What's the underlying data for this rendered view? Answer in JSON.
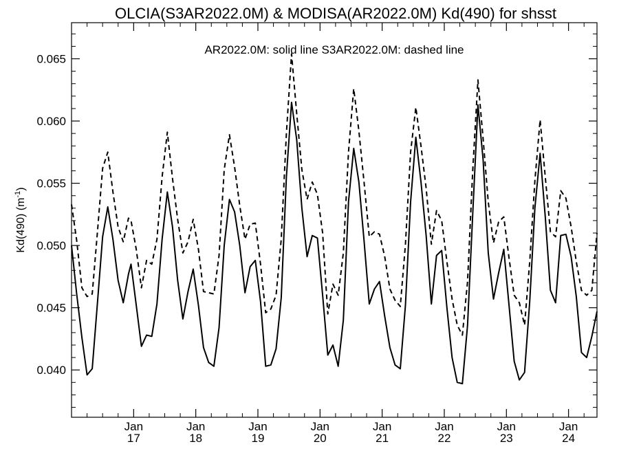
{
  "chart_data": {
    "type": "line",
    "title": "OLCIA(S3AR2022.0M) & MODISA(AR2022.0M)  Kd(490) for shsst",
    "annotation": "AR2022.0M: solid line   S3AR2022.0M: dashed line",
    "ylabel": "Kd(490) (m",
    "ylabel_sup": "-1",
    "ylabel_close": ")",
    "ylim": [
      0.0362,
      0.0679
    ],
    "xlim": [
      2016.0,
      2024.458
    ],
    "grid": false,
    "yticks": [
      {
        "value": 0.04,
        "label": "0.040"
      },
      {
        "value": 0.045,
        "label": "0.045"
      },
      {
        "value": 0.05,
        "label": "0.050"
      },
      {
        "value": 0.055,
        "label": "0.055"
      },
      {
        "value": 0.06,
        "label": "0.060"
      },
      {
        "value": 0.065,
        "label": "0.065"
      }
    ],
    "xticks": [
      {
        "value": 2017,
        "month": "Jan",
        "year": "17"
      },
      {
        "value": 2018,
        "month": "Jan",
        "year": "18"
      },
      {
        "value": 2019,
        "month": "Jan",
        "year": "19"
      },
      {
        "value": 2020,
        "month": "Jan",
        "year": "20"
      },
      {
        "value": 2021,
        "month": "Jan",
        "year": "21"
      },
      {
        "value": 2022,
        "month": "Jan",
        "year": "22"
      },
      {
        "value": 2023,
        "month": "Jan",
        "year": "23"
      },
      {
        "value": 2024,
        "month": "Jan",
        "year": "24"
      }
    ],
    "series": [
      {
        "name": "AR2022.0M",
        "style": "solid",
        "color": "#000000",
        "points": [
          [
            2016.0,
            0.05
          ],
          [
            2016.083,
            0.0461
          ],
          [
            2016.167,
            0.0426
          ],
          [
            2016.25,
            0.0396
          ],
          [
            2016.333,
            0.0401
          ],
          [
            2016.417,
            0.0454
          ],
          [
            2016.5,
            0.0507
          ],
          [
            2016.583,
            0.0531
          ],
          [
            2016.667,
            0.0505
          ],
          [
            2016.75,
            0.0472
          ],
          [
            2016.833,
            0.0454
          ],
          [
            2016.917,
            0.0477
          ],
          [
            2016.958,
            0.0485
          ],
          [
            2017.042,
            0.0452
          ],
          [
            2017.125,
            0.0419
          ],
          [
            2017.208,
            0.0428
          ],
          [
            2017.292,
            0.0427
          ],
          [
            2017.375,
            0.0453
          ],
          [
            2017.458,
            0.0505
          ],
          [
            2017.542,
            0.0543
          ],
          [
            2017.625,
            0.0515
          ],
          [
            2017.708,
            0.0472
          ],
          [
            2017.792,
            0.0441
          ],
          [
            2017.875,
            0.0463
          ],
          [
            2017.958,
            0.0481
          ],
          [
            2018.042,
            0.0452
          ],
          [
            2018.125,
            0.0418
          ],
          [
            2018.208,
            0.0406
          ],
          [
            2018.292,
            0.0403
          ],
          [
            2018.375,
            0.0434
          ],
          [
            2018.458,
            0.05
          ],
          [
            2018.542,
            0.0537
          ],
          [
            2018.625,
            0.0527
          ],
          [
            2018.708,
            0.05
          ],
          [
            2018.792,
            0.0462
          ],
          [
            2018.875,
            0.0483
          ],
          [
            2018.958,
            0.0488
          ],
          [
            2019.042,
            0.0455
          ],
          [
            2019.125,
            0.0403
          ],
          [
            2019.208,
            0.0404
          ],
          [
            2019.292,
            0.0417
          ],
          [
            2019.375,
            0.0458
          ],
          [
            2019.458,
            0.0555
          ],
          [
            2019.542,
            0.0615
          ],
          [
            2019.625,
            0.0585
          ],
          [
            2019.708,
            0.053
          ],
          [
            2019.792,
            0.0491
          ],
          [
            2019.875,
            0.0508
          ],
          [
            2019.958,
            0.0506
          ],
          [
            2020.042,
            0.046
          ],
          [
            2020.125,
            0.0412
          ],
          [
            2020.208,
            0.042
          ],
          [
            2020.292,
            0.0403
          ],
          [
            2020.375,
            0.044
          ],
          [
            2020.458,
            0.0535
          ],
          [
            2020.542,
            0.0578
          ],
          [
            2020.625,
            0.0551
          ],
          [
            2020.708,
            0.0504
          ],
          [
            2020.792,
            0.0453
          ],
          [
            2020.875,
            0.0465
          ],
          [
            2020.958,
            0.0471
          ],
          [
            2021.042,
            0.0443
          ],
          [
            2021.125,
            0.0418
          ],
          [
            2021.208,
            0.0404
          ],
          [
            2021.292,
            0.0401
          ],
          [
            2021.375,
            0.0452
          ],
          [
            2021.458,
            0.0535
          ],
          [
            2021.542,
            0.0587
          ],
          [
            2021.625,
            0.0551
          ],
          [
            2021.708,
            0.0508
          ],
          [
            2021.792,
            0.0453
          ],
          [
            2021.875,
            0.0492
          ],
          [
            2021.958,
            0.0496
          ],
          [
            2022.042,
            0.045
          ],
          [
            2022.125,
            0.041
          ],
          [
            2022.208,
            0.039
          ],
          [
            2022.292,
            0.0389
          ],
          [
            2022.375,
            0.0436
          ],
          [
            2022.458,
            0.0525
          ],
          [
            2022.542,
            0.0613
          ],
          [
            2022.625,
            0.0569
          ],
          [
            2022.708,
            0.0494
          ],
          [
            2022.792,
            0.0457
          ],
          [
            2022.875,
            0.0478
          ],
          [
            2022.958,
            0.0497
          ],
          [
            2023.042,
            0.0452
          ],
          [
            2023.125,
            0.0407
          ],
          [
            2023.208,
            0.0392
          ],
          [
            2023.292,
            0.0398
          ],
          [
            2023.375,
            0.0455
          ],
          [
            2023.458,
            0.053
          ],
          [
            2023.542,
            0.0574
          ],
          [
            2023.625,
            0.0523
          ],
          [
            2023.708,
            0.0464
          ],
          [
            2023.792,
            0.0454
          ],
          [
            2023.875,
            0.0508
          ],
          [
            2023.958,
            0.0509
          ],
          [
            2024.042,
            0.0491
          ],
          [
            2024.125,
            0.0459
          ],
          [
            2024.208,
            0.0414
          ],
          [
            2024.292,
            0.041
          ],
          [
            2024.375,
            0.0427
          ],
          [
            2024.458,
            0.0447
          ]
        ]
      },
      {
        "name": "S3AR2022.0M",
        "style": "dashed",
        "color": "#000000",
        "points": [
          [
            2016.0,
            0.0533
          ],
          [
            2016.083,
            0.0504
          ],
          [
            2016.167,
            0.0466
          ],
          [
            2016.25,
            0.0459
          ],
          [
            2016.333,
            0.0461
          ],
          [
            2016.417,
            0.0511
          ],
          [
            2016.5,
            0.0562
          ],
          [
            2016.583,
            0.0575
          ],
          [
            2016.667,
            0.0543
          ],
          [
            2016.75,
            0.0515
          ],
          [
            2016.833,
            0.0503
          ],
          [
            2016.917,
            0.0522
          ],
          [
            2016.958,
            0.052
          ],
          [
            2017.042,
            0.0497
          ],
          [
            2017.125,
            0.0466
          ],
          [
            2017.208,
            0.0488
          ],
          [
            2017.292,
            0.0485
          ],
          [
            2017.375,
            0.0505
          ],
          [
            2017.458,
            0.0555
          ],
          [
            2017.542,
            0.0591
          ],
          [
            2017.625,
            0.0554
          ],
          [
            2017.708,
            0.0521
          ],
          [
            2017.792,
            0.0494
          ],
          [
            2017.875,
            0.0503
          ],
          [
            2017.958,
            0.0521
          ],
          [
            2018.042,
            0.0497
          ],
          [
            2018.125,
            0.0463
          ],
          [
            2018.208,
            0.0462
          ],
          [
            2018.292,
            0.0461
          ],
          [
            2018.375,
            0.0492
          ],
          [
            2018.458,
            0.0561
          ],
          [
            2018.542,
            0.0589
          ],
          [
            2018.625,
            0.0563
          ],
          [
            2018.708,
            0.0532
          ],
          [
            2018.792,
            0.0505
          ],
          [
            2018.875,
            0.0517
          ],
          [
            2018.958,
            0.0518
          ],
          [
            2019.042,
            0.0485
          ],
          [
            2019.125,
            0.0446
          ],
          [
            2019.208,
            0.0449
          ],
          [
            2019.292,
            0.046
          ],
          [
            2019.375,
            0.0505
          ],
          [
            2019.458,
            0.059
          ],
          [
            2019.542,
            0.0654
          ],
          [
            2019.625,
            0.0606
          ],
          [
            2019.708,
            0.0561
          ],
          [
            2019.792,
            0.0537
          ],
          [
            2019.875,
            0.0551
          ],
          [
            2019.958,
            0.0541
          ],
          [
            2020.042,
            0.051
          ],
          [
            2020.125,
            0.0445
          ],
          [
            2020.208,
            0.0469
          ],
          [
            2020.292,
            0.046
          ],
          [
            2020.375,
            0.0494
          ],
          [
            2020.458,
            0.0575
          ],
          [
            2020.542,
            0.0626
          ],
          [
            2020.625,
            0.0592
          ],
          [
            2020.708,
            0.0551
          ],
          [
            2020.792,
            0.0507
          ],
          [
            2020.875,
            0.0511
          ],
          [
            2020.958,
            0.0509
          ],
          [
            2021.042,
            0.0491
          ],
          [
            2021.125,
            0.0465
          ],
          [
            2021.208,
            0.0456
          ],
          [
            2021.292,
            0.0451
          ],
          [
            2021.375,
            0.0501
          ],
          [
            2021.458,
            0.0575
          ],
          [
            2021.542,
            0.0611
          ],
          [
            2021.625,
            0.058
          ],
          [
            2021.708,
            0.0546
          ],
          [
            2021.792,
            0.0501
          ],
          [
            2021.875,
            0.0528
          ],
          [
            2021.958,
            0.052
          ],
          [
            2022.042,
            0.0487
          ],
          [
            2022.125,
            0.0457
          ],
          [
            2022.208,
            0.0436
          ],
          [
            2022.292,
            0.0428
          ],
          [
            2022.375,
            0.0471
          ],
          [
            2022.458,
            0.056
          ],
          [
            2022.542,
            0.0633
          ],
          [
            2022.625,
            0.0586
          ],
          [
            2022.708,
            0.0535
          ],
          [
            2022.792,
            0.0502
          ],
          [
            2022.875,
            0.0519
          ],
          [
            2022.958,
            0.0523
          ],
          [
            2023.042,
            0.049
          ],
          [
            2023.125,
            0.046
          ],
          [
            2023.208,
            0.0454
          ],
          [
            2023.292,
            0.0436
          ],
          [
            2023.375,
            0.0487
          ],
          [
            2023.458,
            0.0552
          ],
          [
            2023.542,
            0.0601
          ],
          [
            2023.625,
            0.0555
          ],
          [
            2023.708,
            0.0511
          ],
          [
            2023.792,
            0.0507
          ],
          [
            2023.875,
            0.0544
          ],
          [
            2023.958,
            0.0538
          ],
          [
            2024.042,
            0.0515
          ],
          [
            2024.125,
            0.0487
          ],
          [
            2024.208,
            0.0464
          ],
          [
            2024.292,
            0.046
          ],
          [
            2024.375,
            0.0464
          ],
          [
            2024.458,
            0.051
          ]
        ]
      }
    ]
  }
}
